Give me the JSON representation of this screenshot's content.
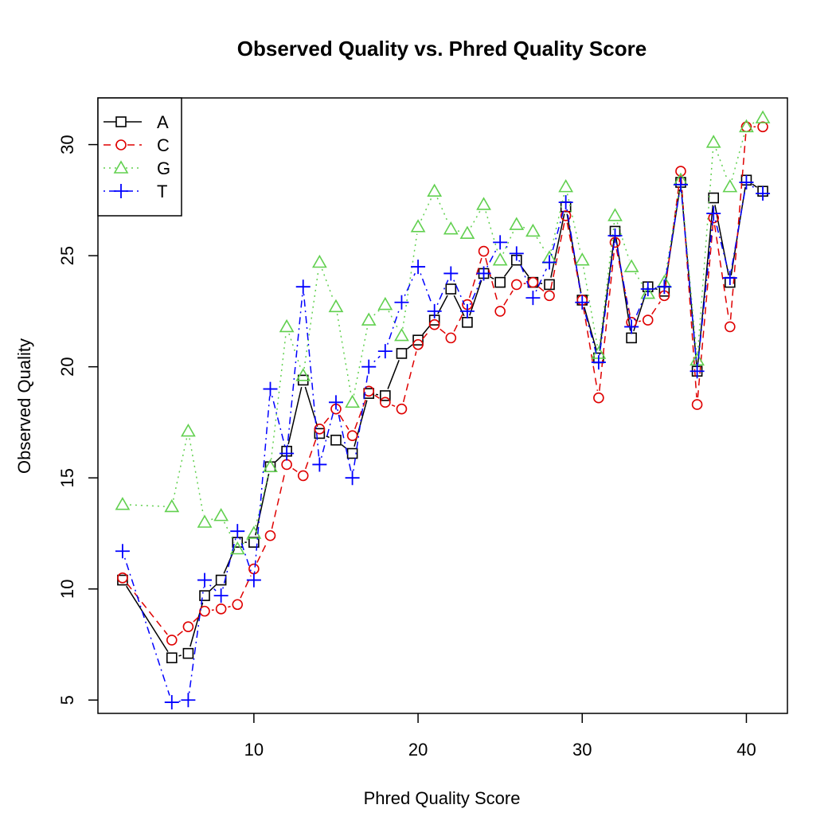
{
  "chart_data": {
    "type": "line",
    "title": "Observed Quality vs. Phred Quality Score",
    "xlabel": "Phred Quality Score",
    "ylabel": "Observed Quality",
    "xlim": [
      0.5,
      42.5
    ],
    "ylim": [
      4.4,
      32.1
    ],
    "x_ticks": [
      "10",
      "20",
      "30",
      "40"
    ],
    "y_ticks": [
      "5",
      "10",
      "15",
      "20",
      "25",
      "30"
    ],
    "legend_position": "top-left",
    "series": [
      {
        "name": "A",
        "color": "#000000",
        "marker": "square",
        "line": "solid",
        "points": [
          [
            2,
            10.4
          ],
          [
            5,
            6.9
          ],
          [
            6,
            7.1
          ],
          [
            7,
            9.7
          ],
          [
            8,
            10.4
          ],
          [
            9,
            12.1
          ],
          [
            10,
            12.1
          ],
          [
            11,
            15.5
          ],
          [
            12,
            16.2
          ],
          [
            13,
            19.4
          ],
          [
            14,
            17.0
          ],
          [
            15,
            16.7
          ],
          [
            16,
            16.1
          ],
          [
            17,
            18.8
          ],
          [
            18,
            18.7
          ],
          [
            19,
            20.6
          ],
          [
            20,
            21.2
          ],
          [
            21,
            22.1
          ],
          [
            22,
            23.5
          ],
          [
            23,
            22.0
          ],
          [
            24,
            24.2
          ],
          [
            25,
            23.8
          ],
          [
            26,
            24.8
          ],
          [
            27,
            23.8
          ],
          [
            28,
            23.7
          ],
          [
            29,
            27.2
          ],
          [
            30,
            23.0
          ],
          [
            31,
            20.4
          ],
          [
            32,
            26.1
          ],
          [
            33,
            21.3
          ],
          [
            34,
            23.6
          ],
          [
            35,
            23.4
          ],
          [
            36,
            28.3
          ],
          [
            37,
            19.8
          ],
          [
            38,
            27.6
          ],
          [
            39,
            23.8
          ],
          [
            40,
            28.4
          ],
          [
            41,
            27.9
          ]
        ]
      },
      {
        "name": "C",
        "color": "#df0000",
        "marker": "circle",
        "line": "dashed",
        "points": [
          [
            2,
            10.5
          ],
          [
            5,
            7.7
          ],
          [
            6,
            8.3
          ],
          [
            7,
            9.0
          ],
          [
            8,
            9.1
          ],
          [
            9,
            9.3
          ],
          [
            10,
            10.9
          ],
          [
            11,
            12.4
          ],
          [
            12,
            15.6
          ],
          [
            13,
            15.1
          ],
          [
            14,
            17.2
          ],
          [
            15,
            18.1
          ],
          [
            16,
            16.9
          ],
          [
            17,
            18.9
          ],
          [
            18,
            18.4
          ],
          [
            19,
            18.1
          ],
          [
            20,
            21.0
          ],
          [
            21,
            21.9
          ],
          [
            22,
            21.3
          ],
          [
            23,
            22.8
          ],
          [
            24,
            25.2
          ],
          [
            25,
            22.5
          ],
          [
            26,
            23.7
          ],
          [
            27,
            23.8
          ],
          [
            28,
            23.2
          ],
          [
            29,
            26.8
          ],
          [
            30,
            23.0
          ],
          [
            31,
            18.6
          ],
          [
            32,
            25.6
          ],
          [
            33,
            22.0
          ],
          [
            34,
            22.1
          ],
          [
            35,
            23.2
          ],
          [
            36,
            28.8
          ],
          [
            37,
            18.3
          ],
          [
            38,
            26.7
          ],
          [
            39,
            21.8
          ],
          [
            40,
            30.8
          ],
          [
            41,
            30.8
          ]
        ]
      },
      {
        "name": "G",
        "color": "#61d04f",
        "marker": "triangle",
        "line": "dotted",
        "points": [
          [
            2,
            13.8
          ],
          [
            5,
            13.7
          ],
          [
            6,
            17.1
          ],
          [
            7,
            13.0
          ],
          [
            8,
            13.3
          ],
          [
            9,
            11.8
          ],
          [
            10,
            12.5
          ],
          [
            11,
            15.5
          ],
          [
            12,
            21.8
          ],
          [
            13,
            19.6
          ],
          [
            14,
            24.7
          ],
          [
            15,
            22.7
          ],
          [
            16,
            18.4
          ],
          [
            17,
            22.1
          ],
          [
            18,
            22.8
          ],
          [
            19,
            21.4
          ],
          [
            20,
            26.3
          ],
          [
            21,
            27.9
          ],
          [
            22,
            26.2
          ],
          [
            23,
            26.0
          ],
          [
            24,
            27.3
          ],
          [
            25,
            24.8
          ],
          [
            26,
            26.4
          ],
          [
            27,
            26.1
          ],
          [
            28,
            24.9
          ],
          [
            29,
            28.1
          ],
          [
            30,
            24.8
          ],
          [
            31,
            20.6
          ],
          [
            32,
            26.8
          ],
          [
            33,
            24.5
          ],
          [
            34,
            23.3
          ],
          [
            35,
            23.8
          ],
          [
            36,
            28.4
          ],
          [
            37,
            20.3
          ],
          [
            38,
            30.1
          ],
          [
            39,
            28.1
          ],
          [
            40,
            30.8
          ],
          [
            41,
            31.2
          ]
        ]
      },
      {
        "name": "T",
        "color": "#0000ff",
        "marker": "plus",
        "line": "dotdash",
        "points": [
          [
            2,
            11.7
          ],
          [
            5,
            4.9
          ],
          [
            6,
            5.0
          ],
          [
            7,
            10.4
          ],
          [
            8,
            9.7
          ],
          [
            9,
            12.6
          ],
          [
            10,
            10.4
          ],
          [
            11,
            19.0
          ],
          [
            12,
            16.1
          ],
          [
            13,
            23.6
          ],
          [
            14,
            15.6
          ],
          [
            15,
            18.4
          ],
          [
            16,
            15.0
          ],
          [
            17,
            20.0
          ],
          [
            18,
            20.7
          ],
          [
            19,
            22.9
          ],
          [
            20,
            24.5
          ],
          [
            21,
            22.5
          ],
          [
            22,
            24.2
          ],
          [
            23,
            22.5
          ],
          [
            24,
            24.2
          ],
          [
            25,
            25.6
          ],
          [
            26,
            25.1
          ],
          [
            27,
            23.1
          ],
          [
            28,
            24.7
          ],
          [
            29,
            27.4
          ],
          [
            30,
            22.9
          ],
          [
            31,
            20.2
          ],
          [
            32,
            25.9
          ],
          [
            33,
            21.8
          ],
          [
            34,
            23.5
          ],
          [
            35,
            23.6
          ],
          [
            36,
            28.2
          ],
          [
            37,
            19.8
          ],
          [
            38,
            26.9
          ],
          [
            39,
            24.0
          ],
          [
            40,
            28.3
          ],
          [
            41,
            27.8
          ]
        ]
      }
    ]
  }
}
